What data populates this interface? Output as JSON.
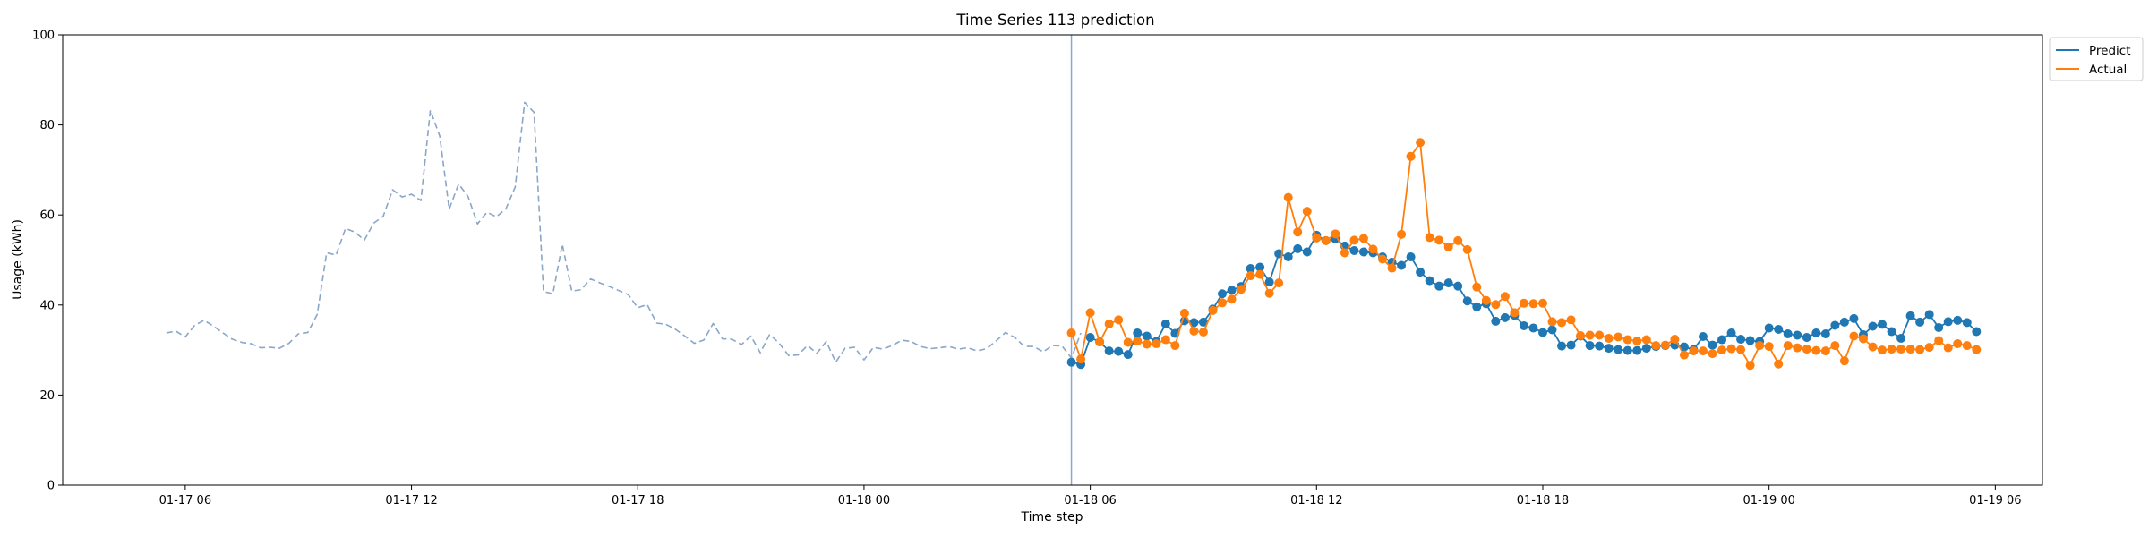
{
  "chart_data": {
    "type": "line",
    "title": "Time Series 113 prediction",
    "xlabel": "Time step",
    "ylabel": "Usage (kWh)",
    "x_ticks": [
      "01-17 06",
      "01-17 12",
      "01-17 18",
      "01-18 00",
      "01-18 06",
      "01-18 12",
      "01-18 18",
      "01-19 00",
      "01-19 06"
    ],
    "x_range": [
      "2024-01-17 02:45",
      "2024-01-19 07:15"
    ],
    "ylim": [
      0,
      100
    ],
    "y_ticks": [
      0,
      20,
      40,
      60,
      80,
      100
    ],
    "grid": false,
    "legend": {
      "placement": "upper-right-outside",
      "entries": [
        "Predict",
        "Actual"
      ]
    },
    "forecast_start": "2024-01-18 05:30",
    "interval_minutes": 15,
    "colors": {
      "history": "#8aa6c8",
      "predict": "#1f77b4",
      "actual": "#ff7f0e",
      "divider": "#8aa6d8"
    },
    "series": [
      {
        "name": "",
        "style": "dashed",
        "start": "2024-01-17 05:30",
        "values": [
          33.8,
          34.2,
          32.9,
          35.5,
          36.6,
          35.3,
          33.8,
          32.4,
          31.7,
          31.4,
          30.5,
          30.6,
          30.4,
          31.5,
          33.6,
          33.9,
          37.9,
          51.6,
          51.1,
          57.0,
          56.2,
          54.4,
          58.2,
          59.7,
          65.6,
          64.0,
          64.6,
          63.2,
          83.3,
          77.5,
          61.3,
          66.9,
          64.1,
          58.0,
          60.6,
          59.6,
          61.3,
          66.2,
          85.0,
          82.8,
          43.0,
          42.5,
          53.5,
          43.1,
          43.4,
          45.8,
          44.9,
          44.1,
          43.2,
          42.3,
          39.4,
          40.1,
          36.0,
          35.7,
          34.6,
          33.1,
          31.5,
          32.2,
          35.9,
          32.5,
          32.4,
          31.2,
          33.1,
          29.4,
          33.5,
          31.5,
          28.8,
          28.9,
          31.0,
          29.3,
          31.9,
          27.3,
          30.4,
          30.6,
          27.8,
          30.6,
          30.2,
          31.0,
          32.2,
          31.9,
          30.8,
          30.3,
          30.5,
          30.8,
          30.2,
          30.5,
          29.8,
          30.3,
          32.0,
          33.9,
          32.8,
          30.8,
          30.8,
          29.6,
          31.0,
          30.9,
          28.2,
          33.8
        ]
      },
      {
        "name": "Predict",
        "style": "solid-marker",
        "start": "2024-01-18 05:30",
        "values": [
          27.3,
          26.8,
          32.8,
          31.8,
          29.8,
          29.7,
          29.0,
          33.8,
          33.1,
          31.9,
          35.8,
          33.7,
          36.5,
          36.1,
          36.2,
          39.1,
          42.5,
          43.3,
          44.1,
          48.1,
          48.4,
          45.1,
          51.4,
          50.7,
          52.5,
          51.8,
          55.5,
          54.3,
          54.7,
          53.1,
          52.1,
          51.8,
          51.6,
          50.7,
          49.5,
          48.8,
          50.7,
          47.3,
          45.4,
          44.2,
          44.9,
          44.2,
          40.9,
          39.6,
          40.3,
          36.4,
          37.2,
          37.7,
          35.4,
          34.9,
          33.9,
          34.5,
          30.9,
          31.1,
          33.1,
          31.0,
          30.9,
          30.4,
          30.1,
          29.9,
          29.9,
          30.4,
          30.8,
          31.0,
          31.1,
          30.7,
          30.1,
          33.0,
          31.1,
          32.3,
          33.8,
          32.4,
          32.1,
          31.9,
          34.9,
          34.6,
          33.6,
          33.3,
          32.8,
          33.8,
          33.6,
          35.5,
          36.2,
          37.0,
          33.4,
          35.3,
          35.7,
          34.1,
          32.6,
          37.6,
          36.2,
          37.9,
          35.0,
          36.3,
          36.6,
          36.1,
          34.1
        ]
      },
      {
        "name": "Actual",
        "style": "solid-marker",
        "start": "2024-01-18 05:30",
        "values": [
          33.8,
          28.0,
          38.3,
          31.8,
          35.8,
          36.7,
          31.7,
          32.0,
          31.3,
          31.4,
          32.3,
          31.0,
          38.2,
          34.2,
          34.0,
          38.8,
          40.5,
          41.3,
          43.5,
          46.5,
          46.8,
          42.6,
          44.9,
          63.9,
          56.2,
          60.8,
          54.9,
          54.3,
          55.8,
          51.6,
          54.4,
          54.8,
          52.4,
          50.2,
          48.2,
          55.7,
          73.0,
          76.1,
          55.0,
          54.4,
          52.9,
          54.3,
          52.3,
          44.0,
          41.0,
          40.1,
          41.9,
          38.3,
          40.4,
          40.3,
          40.4,
          36.3,
          36.1,
          36.7,
          33.2,
          33.3,
          33.3,
          32.6,
          32.9,
          32.3,
          32.0,
          32.3,
          31.0,
          31.1,
          32.4,
          28.9,
          29.8,
          29.8,
          29.2,
          30.0,
          30.3,
          30.1,
          26.6,
          31.0,
          30.8,
          26.9,
          31.0,
          30.5,
          30.2,
          29.9,
          29.8,
          31.0,
          27.6,
          33.1,
          32.5,
          30.7,
          30.0,
          30.2,
          30.2,
          30.2,
          30.1,
          30.6,
          32.1,
          30.5,
          31.4,
          31.0,
          30.1
        ]
      }
    ]
  }
}
